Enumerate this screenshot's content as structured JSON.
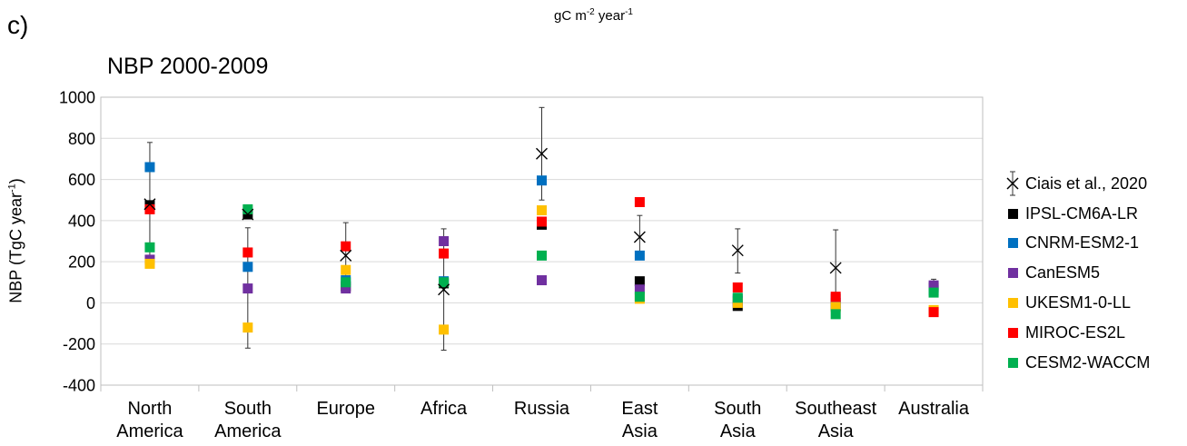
{
  "figure": {
    "panel_label": "c)",
    "units_label": {
      "base": "gC m",
      "exp1": "-2",
      "mid": " year",
      "exp2": "-1"
    }
  },
  "chart_data": {
    "type": "scatter",
    "title": "NBP 2000-2009",
    "ylabel": {
      "prefix": "NBP (TgC year",
      "exp": "-1",
      "suffix": ")"
    },
    "ylim": [
      -400,
      1000
    ],
    "yticks": [
      -400,
      -200,
      0,
      200,
      400,
      600,
      800,
      1000
    ],
    "ytick_labels": [
      "-400",
      "-200",
      "0",
      "200",
      "400",
      "600",
      "800",
      "1000"
    ],
    "grid": true,
    "legend_position": "right",
    "categories": [
      [
        "North",
        "America"
      ],
      [
        "South",
        "America"
      ],
      [
        "Europe"
      ],
      [
        "Africa"
      ],
      [
        "Russia"
      ],
      [
        "East",
        "Asia"
      ],
      [
        "South",
        "Asia"
      ],
      [
        "Southeast",
        "Asia"
      ],
      [
        "Australia"
      ]
    ],
    "reference": {
      "name": "Ciais et al., 2020",
      "values": [
        480,
        430,
        230,
        65,
        725,
        320,
        255,
        170,
        null
      ],
      "errors_low": [
        190,
        -220,
        80,
        -230,
        500,
        235,
        145,
        0,
        95
      ],
      "errors_high": [
        780,
        365,
        390,
        360,
        950,
        425,
        360,
        355,
        115
      ]
    },
    "series": [
      {
        "name": "IPSL-CM6A-LR",
        "color": "#000000",
        "values": [
          475,
          430,
          80,
          95,
          380,
          105,
          -15,
          -15,
          75
        ]
      },
      {
        "name": "CNRM-ESM2-1",
        "color": "#0070C0",
        "values": [
          660,
          175,
          110,
          105,
          595,
          230,
          20,
          0,
          60
        ]
      },
      {
        "name": "CanESM5",
        "color": "#7030A0",
        "values": [
          210,
          70,
          70,
          300,
          110,
          65,
          10,
          20,
          85
        ]
      },
      {
        "name": "UKESM1-0-LL",
        "color": "#FFC000",
        "values": [
          190,
          -120,
          160,
          -130,
          450,
          20,
          0,
          -20,
          -35
        ]
      },
      {
        "name": "MIROC-ES2L",
        "color": "#FF0000",
        "values": [
          455,
          245,
          275,
          240,
          395,
          490,
          75,
          30,
          -45
        ]
      },
      {
        "name": "CESM2-WACCM",
        "color": "#00B050",
        "values": [
          270,
          455,
          100,
          100,
          230,
          30,
          25,
          -55,
          50
        ]
      }
    ]
  }
}
